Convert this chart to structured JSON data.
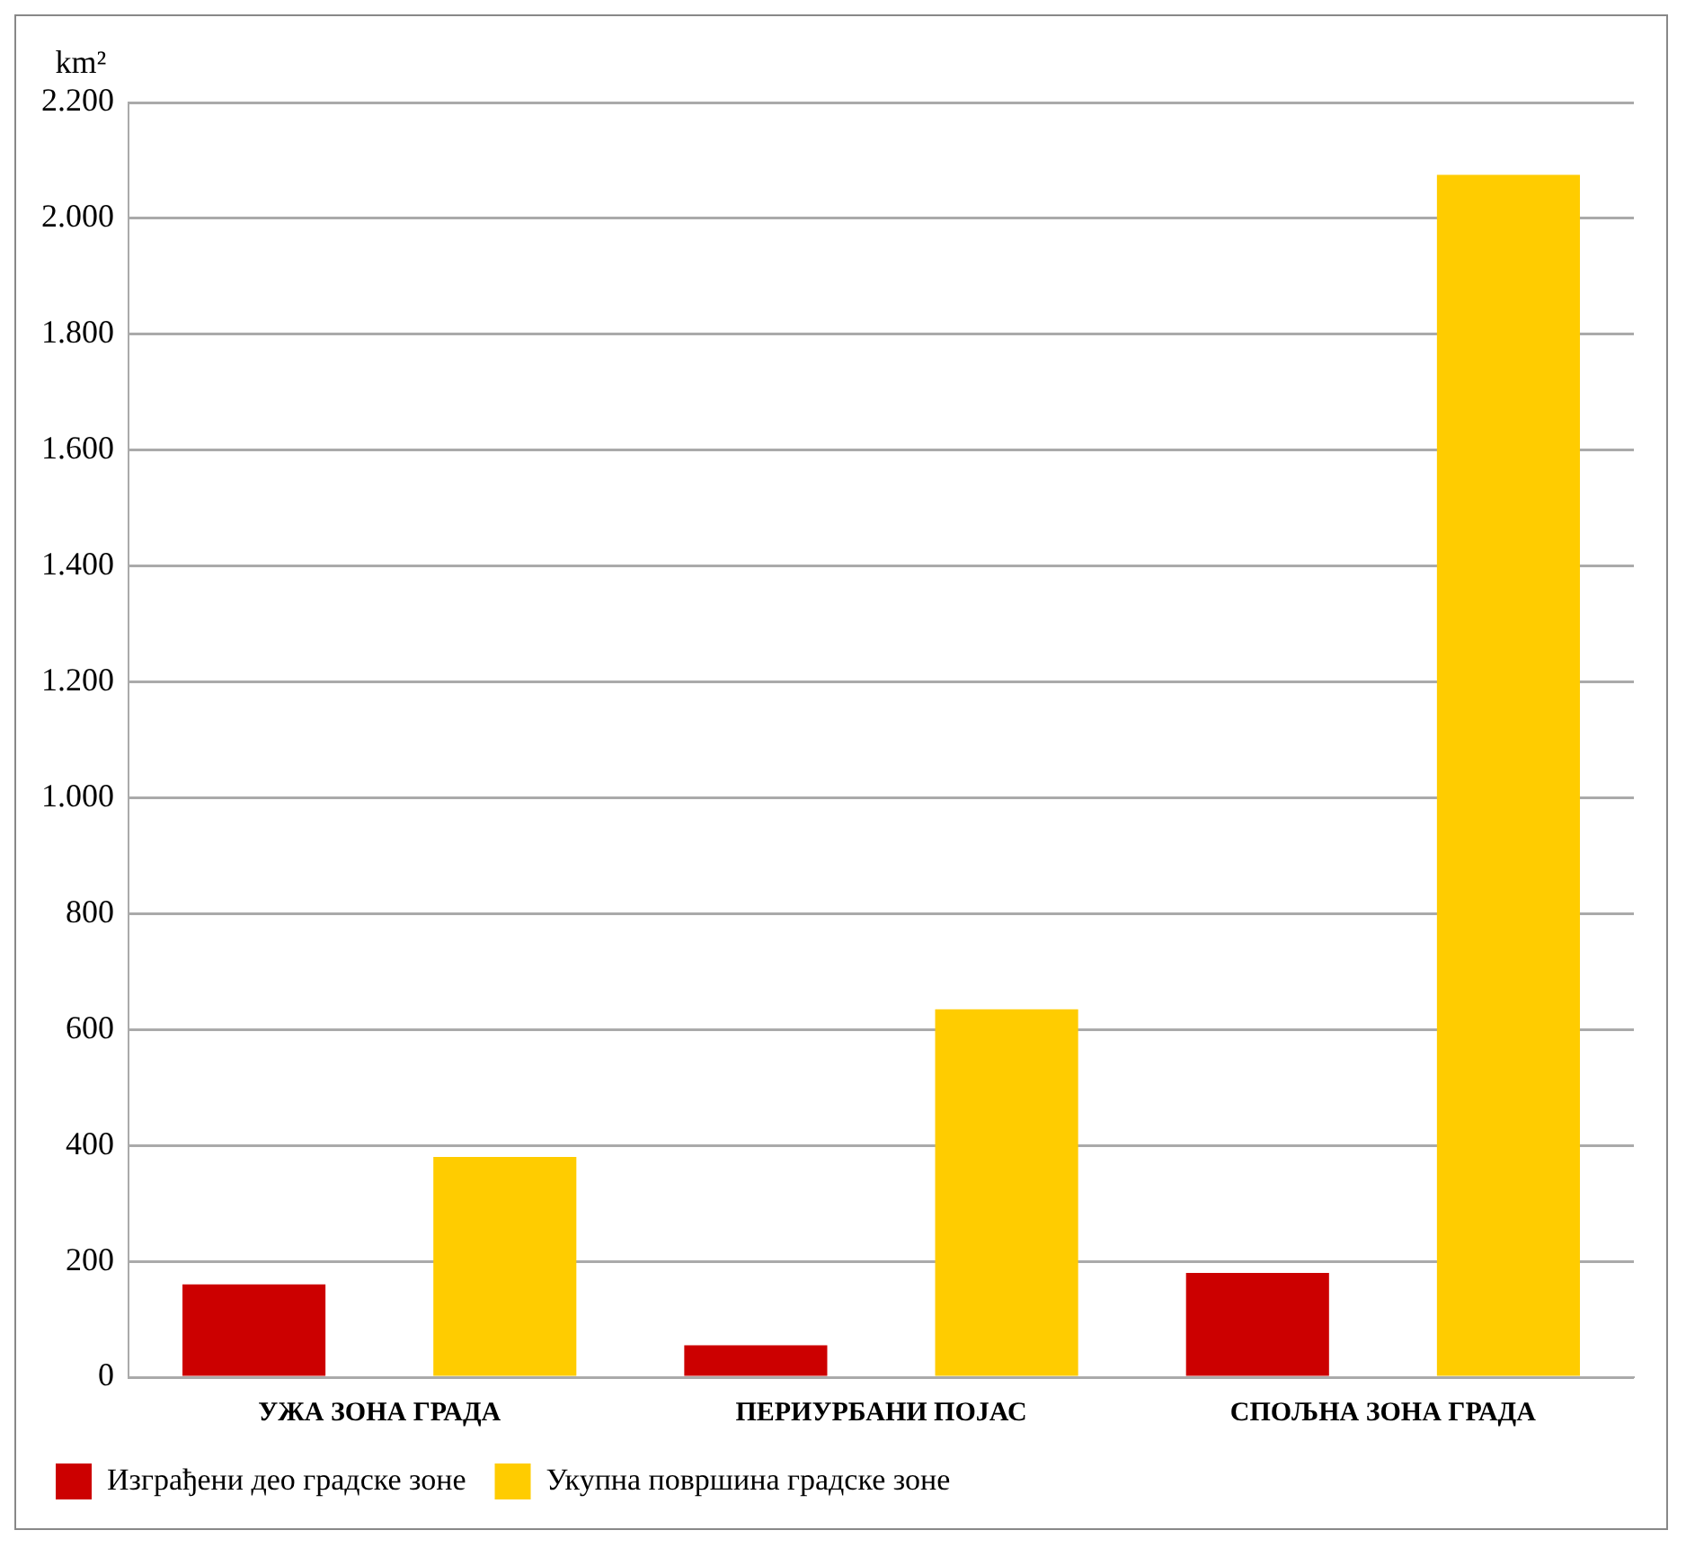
{
  "chart_data": {
    "type": "bar",
    "ylabel": "km²",
    "categories": [
      "УЖА ЗОНА ГРАДА",
      "ПЕРИУРБАНИ ПОЈАС",
      "СПОЉНА ЗОНА ГРАДА"
    ],
    "series": [
      {
        "name": "Изграђени део градске зоне",
        "color": "#cc0000",
        "values": [
          160,
          55,
          180
        ]
      },
      {
        "name": "Укупна површина градске зоне",
        "color": "#ffcc00",
        "values": [
          380,
          635,
          2075
        ]
      }
    ],
    "ylim": [
      0,
      2200
    ],
    "yticks": [
      0,
      200,
      400,
      600,
      800,
      {
        "value": 1000,
        "label": "1.000"
      },
      {
        "value": 1200,
        "label": "1.200"
      },
      {
        "value": 1400,
        "label": "1.400"
      },
      {
        "value": 1600,
        "label": "1.600"
      },
      {
        "value": 1800,
        "label": "1.800"
      },
      {
        "value": 2000,
        "label": "2.000"
      },
      {
        "value": 2200,
        "label": "2.200"
      }
    ],
    "grid": "y",
    "legend": "bottom left"
  }
}
